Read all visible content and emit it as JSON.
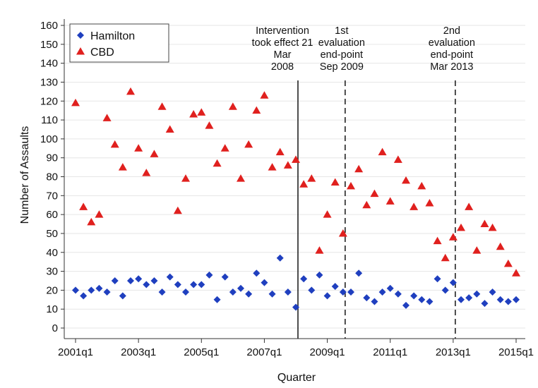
{
  "chart_data": {
    "type": "scatter",
    "ylabel": "Number of Assaults",
    "xlabel": "Quarter",
    "ylim": [
      0,
      160
    ],
    "yticks": [
      0,
      10,
      20,
      30,
      40,
      50,
      60,
      70,
      80,
      90,
      100,
      110,
      120,
      130,
      140,
      150,
      160
    ],
    "xlim": [
      "2001q1",
      "2015q1"
    ],
    "xticks": [
      "2001q1",
      "2003q1",
      "2005q1",
      "2007q1",
      "2009q1",
      "2011q1",
      "2013q1",
      "2015q1"
    ],
    "grid": true,
    "legend_position": "top-left",
    "quarters": [
      "2001q1",
      "2001q2",
      "2001q3",
      "2001q4",
      "2002q1",
      "2002q2",
      "2002q3",
      "2002q4",
      "2003q1",
      "2003q2",
      "2003q3",
      "2003q4",
      "2004q1",
      "2004q2",
      "2004q3",
      "2004q4",
      "2005q1",
      "2005q2",
      "2005q3",
      "2005q4",
      "2006q1",
      "2006q2",
      "2006q3",
      "2006q4",
      "2007q1",
      "2007q2",
      "2007q3",
      "2007q4",
      "2008q1",
      "2008q2",
      "2008q3",
      "2008q4",
      "2009q1",
      "2009q2",
      "2009q3",
      "2009q4",
      "2010q1",
      "2010q2",
      "2010q3",
      "2010q4",
      "2011q1",
      "2011q2",
      "2011q3",
      "2011q4",
      "2012q1",
      "2012q2",
      "2012q3",
      "2012q4",
      "2013q1",
      "2013q2",
      "2013q3",
      "2013q4",
      "2014q1",
      "2014q2",
      "2014q3",
      "2014q4",
      "2015q1"
    ],
    "series": [
      {
        "name": "Hamilton",
        "marker": "diamond",
        "color": "#1f3fbf",
        "values": [
          20,
          17,
          20,
          21,
          19,
          25,
          17,
          25,
          26,
          23,
          25,
          19,
          27,
          23,
          19,
          23,
          23,
          28,
          15,
          27,
          19,
          21,
          18,
          29,
          24,
          18,
          37,
          19,
          11,
          26,
          20,
          28,
          17,
          22,
          19,
          19,
          29,
          16,
          14,
          19,
          21,
          18,
          12,
          17,
          15,
          14,
          26,
          20,
          24,
          15,
          16,
          18,
          13,
          19,
          15,
          14,
          15
        ]
      },
      {
        "name": "CBD",
        "marker": "triangle",
        "color": "#e0201e",
        "values": [
          119,
          64,
          56,
          60,
          111,
          97,
          85,
          125,
          95,
          82,
          92,
          117,
          105,
          62,
          79,
          113,
          114,
          107,
          87,
          95,
          117,
          79,
          97,
          115,
          123,
          85,
          93,
          86,
          89,
          76,
          79,
          41,
          60,
          77,
          50,
          75,
          84,
          65,
          71,
          93,
          67,
          89,
          78,
          64,
          75,
          66,
          46,
          37,
          48,
          53,
          64,
          41,
          55,
          53,
          43,
          34,
          29
        ]
      }
    ],
    "vertical_lines": [
      {
        "x": "2008q1",
        "style": "solid",
        "label_lines": [
          "Intervention",
          "took effect 21",
          "Mar",
          "2008"
        ]
      },
      {
        "x": "2009q3",
        "style": "dashed",
        "label_lines": [
          "1st",
          "evaluation",
          "end-point",
          "Sep 2009"
        ]
      },
      {
        "x": "2013q1",
        "style": "dashed",
        "label_lines": [
          "2nd",
          "evaluation",
          "end-point",
          "Mar 2013"
        ]
      }
    ],
    "colors": {
      "background": "#ffffff",
      "grid": "#e6e6e6",
      "axis": "#333333"
    }
  }
}
